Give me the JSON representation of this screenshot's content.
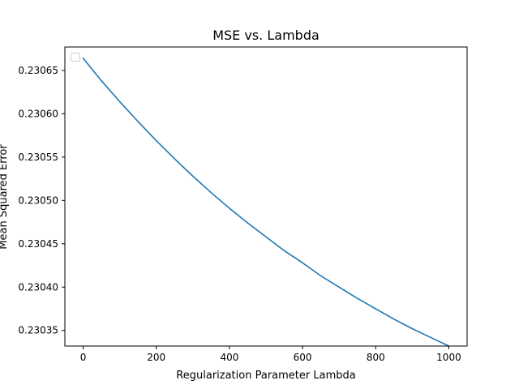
{
  "chart_data": {
    "type": "line",
    "title": "MSE vs. Lambda",
    "xlabel": "Regularization Parameter Lambda",
    "ylabel": "Mean Squared Error",
    "xlim": [
      -50,
      1050
    ],
    "ylim": [
      0.230332,
      0.230677
    ],
    "x_ticks": [
      0,
      200,
      400,
      600,
      800,
      1000
    ],
    "x_tick_labels": [
      "0",
      "200",
      "400",
      "600",
      "800",
      "1000"
    ],
    "y_ticks": [
      0.23035,
      0.2304,
      0.23045,
      0.2305,
      0.23055,
      0.2306,
      0.23065
    ],
    "y_tick_labels": [
      "0.23035",
      "0.23040",
      "0.23045",
      "0.23050",
      "0.23055",
      "0.23060",
      "0.23065"
    ],
    "grid": false,
    "legend": {
      "location": "upper-left",
      "entries": []
    },
    "series": [
      {
        "color": "#1f77b4",
        "x": [
          0,
          50,
          100,
          150,
          200,
          250,
          300,
          350,
          400,
          450,
          500,
          550,
          600,
          650,
          700,
          750,
          800,
          850,
          900,
          950,
          1000
        ],
        "y": [
          0.230664,
          0.230638,
          0.230614,
          0.230591,
          0.230569,
          0.230548,
          0.230528,
          0.230509,
          0.230491,
          0.230474,
          0.230458,
          0.230442,
          0.230428,
          0.230413,
          0.2304,
          0.230387,
          0.230375,
          0.230363,
          0.230352,
          0.230342,
          0.230332
        ]
      }
    ]
  }
}
